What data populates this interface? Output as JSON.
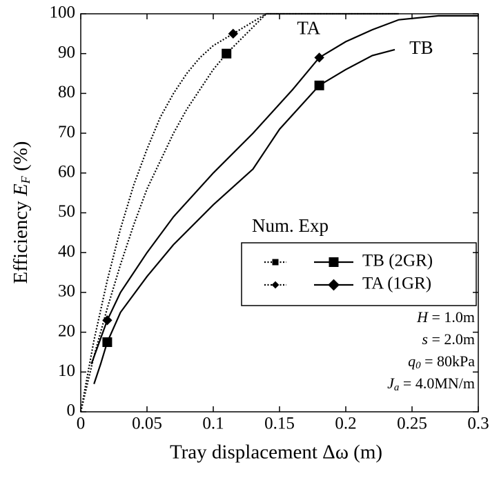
{
  "chart_data": {
    "type": "line",
    "x_label": "Tray displacement Δω  (m)",
    "y_label": {
      "text": "Efficiency ",
      "symbol": "E",
      "sub": "F",
      "unit": " (%)"
    },
    "xlim": [
      0,
      0.3
    ],
    "ylim": [
      0,
      100
    ],
    "xticks": [
      0,
      0.05,
      0.1,
      0.15,
      0.2,
      0.25,
      0.3
    ],
    "yticks": [
      0,
      10,
      20,
      30,
      40,
      50,
      60,
      70,
      80,
      90,
      100
    ],
    "legend_title": "Num. Exp",
    "series": [
      {
        "name": "TB (2GR)",
        "style": "dotted",
        "marker": "square",
        "color": "#000",
        "x": [
          0,
          0.01,
          0.02,
          0.03,
          0.04,
          0.05,
          0.06,
          0.07,
          0.08,
          0.09,
          0.1,
          0.11,
          0.125,
          0.14,
          0.24
        ],
        "values": [
          0,
          14,
          26,
          37,
          47,
          56,
          63,
          70,
          76,
          81,
          86,
          90,
          95,
          100,
          100
        ],
        "points": [
          {
            "x": 0.11,
            "y": 90
          }
        ]
      },
      {
        "name": "TA (1GR)",
        "style": "dotted",
        "marker": "diamond",
        "color": "#000",
        "x": [
          0,
          0.01,
          0.02,
          0.03,
          0.04,
          0.05,
          0.06,
          0.07,
          0.08,
          0.09,
          0.1,
          0.115,
          0.13,
          0.14,
          0.24
        ],
        "values": [
          0,
          18,
          33,
          46,
          57,
          66,
          74,
          80,
          85,
          89,
          92,
          95,
          98,
          100,
          100
        ],
        "points": [
          {
            "x": 0.115,
            "y": 95
          }
        ]
      },
      {
        "name": "TB (2GR)",
        "style": "solid",
        "marker": "square",
        "color": "#000",
        "x": [
          0.01,
          0.015,
          0.02,
          0.03,
          0.05,
          0.07,
          0.1,
          0.13,
          0.14,
          0.15,
          0.18,
          0.2,
          0.22,
          0.237
        ],
        "values": [
          7,
          12,
          17.5,
          25,
          34,
          42,
          52,
          61,
          66,
          71,
          82,
          86,
          89.5,
          91
        ],
        "points": [
          {
            "x": 0.02,
            "y": 17.5
          },
          {
            "x": 0.18,
            "y": 82
          }
        ]
      },
      {
        "name": "TA (1GR)",
        "style": "solid",
        "marker": "diamond",
        "color": "#000",
        "x": [
          0.008,
          0.02,
          0.03,
          0.05,
          0.07,
          0.1,
          0.13,
          0.16,
          0.18,
          0.2,
          0.22,
          0.24,
          0.27,
          0.3
        ],
        "values": [
          12,
          23,
          30,
          40,
          49,
          60,
          70,
          81,
          89,
          93,
          96,
          98.5,
          99.5,
          99.5
        ],
        "points": [
          {
            "x": 0.02,
            "y": 23
          },
          {
            "x": 0.18,
            "y": 89
          }
        ]
      }
    ],
    "annotations": [
      {
        "text": "TA",
        "x": 0.172,
        "y": 96
      },
      {
        "text": "TB",
        "x": 0.257,
        "y": 91
      }
    ],
    "parameters": [
      {
        "symbol": "H",
        "value": " = 1.0m"
      },
      {
        "symbol": "s",
        "value": " = 2.0m"
      },
      {
        "symbol": "q",
        "sub": "0",
        "value": " = 80kPa"
      },
      {
        "symbol": "J",
        "sub": "a",
        "value": " = 4.0MN/m"
      }
    ]
  }
}
